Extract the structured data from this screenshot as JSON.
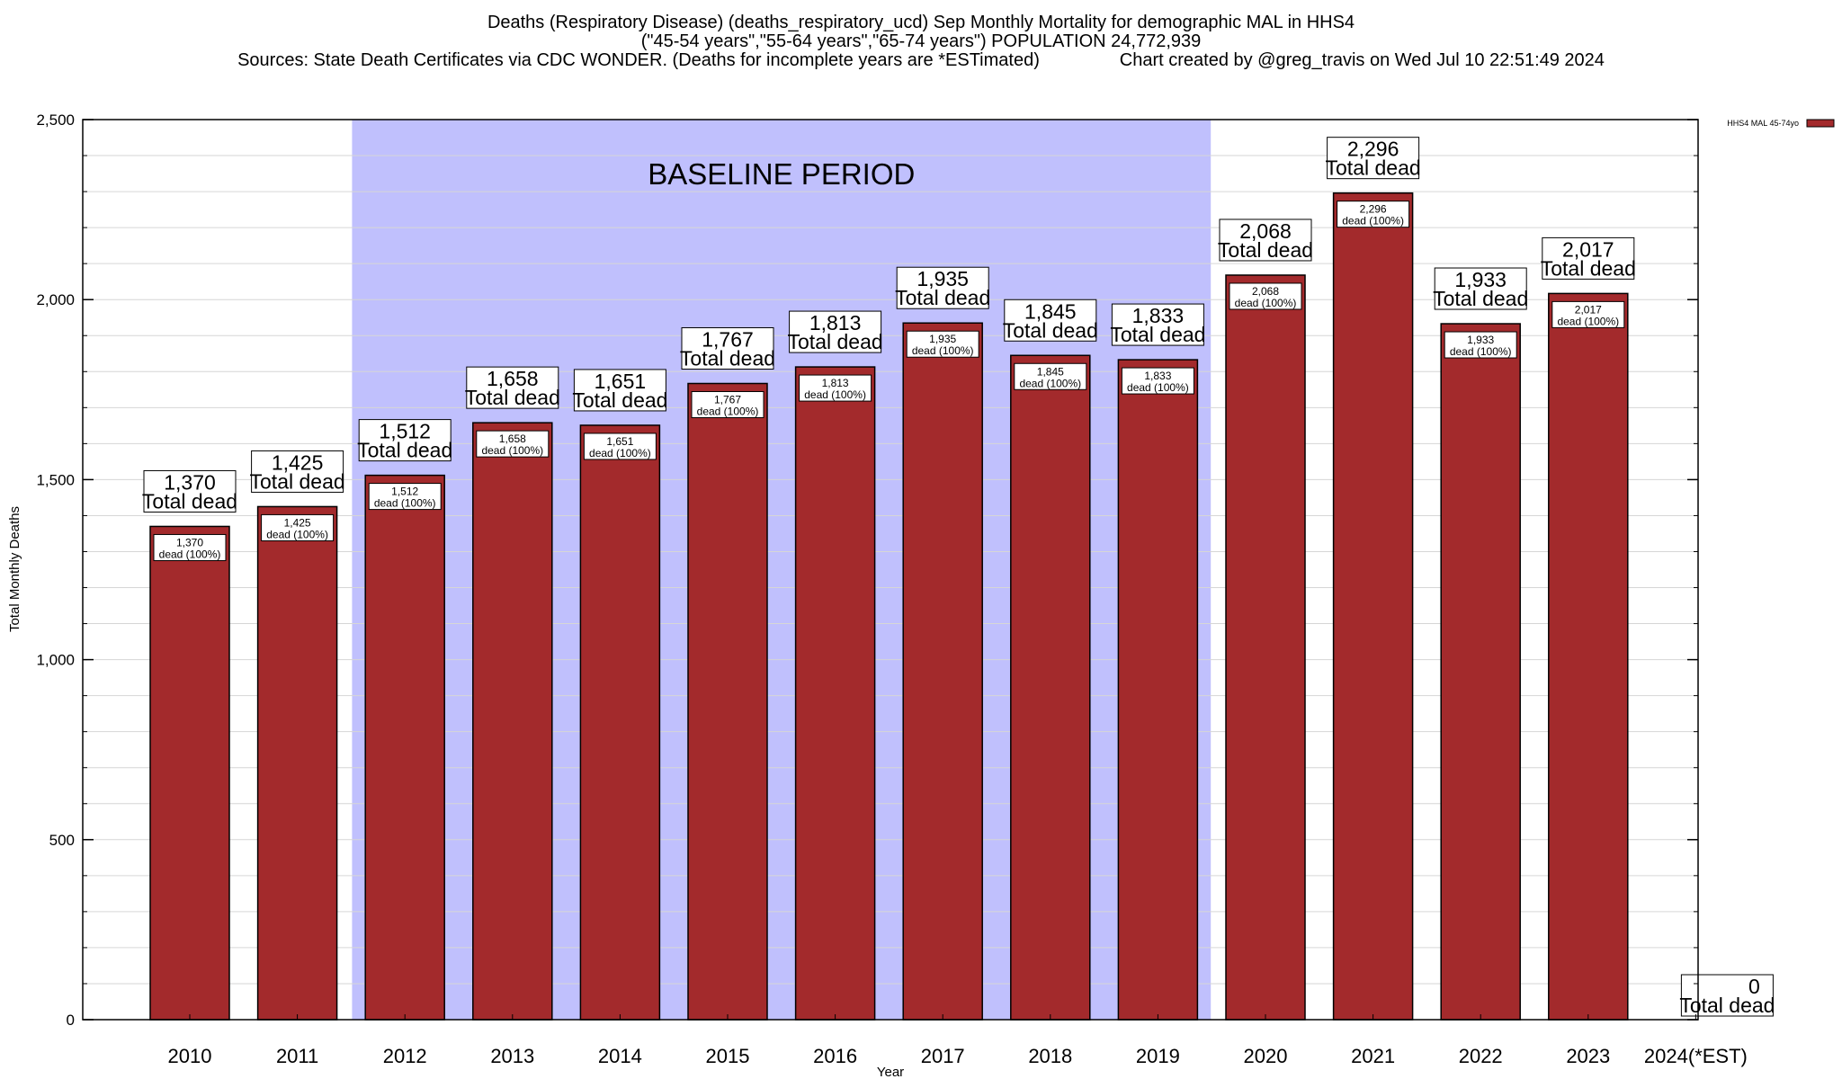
{
  "header": {
    "title_line1": "Deaths (Respiratory Disease) (deaths_respiratory_ucd) Sep Monthly Mortality for demographic MAL in HHS4",
    "title_line2": "(\"45-54 years\",\"55-64 years\",\"65-74 years\") POPULATION 24,772,939",
    "title_line3": "Sources: State Death Certificates via CDC WONDER. (Deaths for incomplete years are *ESTimated)                Chart created by @greg_travis on Wed Jul 10 22:51:49 2024"
  },
  "colors": {
    "bar": "#a32a2c",
    "baseline": "#c0c0fd",
    "grid": "#d6d6d6"
  },
  "chart_data": {
    "type": "bar",
    "categories": [
      "2010",
      "2011",
      "2012",
      "2013",
      "2014",
      "2015",
      "2016",
      "2017",
      "2018",
      "2019",
      "2020",
      "2021",
      "2022",
      "2023",
      "2024(*EST)"
    ],
    "values": [
      1370,
      1425,
      1512,
      1658,
      1651,
      1767,
      1813,
      1935,
      1845,
      1833,
      2068,
      2296,
      1933,
      2017,
      0
    ],
    "value_labels": [
      "1,370",
      "1,425",
      "1,512",
      "1,658",
      "1,651",
      "1,767",
      "1,813",
      "1,935",
      "1,845",
      "1,833",
      "2,068",
      "2,296",
      "1,933",
      "2,017",
      "0"
    ],
    "top_label_suffix": "Total dead",
    "inner_label_suffix": "dead (100%)",
    "ylim": [
      0,
      2500
    ],
    "yticks": [
      0,
      500,
      1000,
      1500,
      2000,
      2500
    ],
    "ytick_labels": [
      "0",
      "500",
      "1,000",
      "1,500",
      "2,000",
      "2,500"
    ],
    "xlabel": "Year",
    "ylabel": "Total Monthly Deaths",
    "baseline_period": {
      "label": "BASELINE PERIOD",
      "from": "2012",
      "to": "2019"
    },
    "legend": {
      "label": "HHS4 MAL 45-74yo",
      "position": "top-right"
    },
    "grid": true
  }
}
